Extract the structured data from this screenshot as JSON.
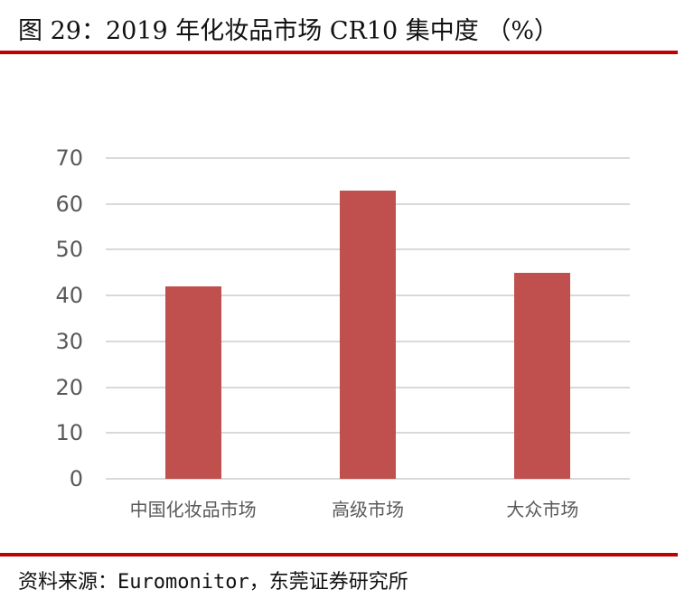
{
  "title": "图 29：2019 年化妆品市场 CR10 集中度 （%）",
  "source": "资料来源：Euromonitor，东莞证券研究所",
  "colors": {
    "bar": "#c0504d",
    "rule": "#c00000",
    "grid": "#d9d9d9",
    "axis_text": "#595959"
  },
  "chart_data": {
    "type": "bar",
    "title": "2019 年化妆品市场 CR10 集中度 （%）",
    "categories": [
      "中国化妆品市场",
      "高级市场",
      "大众市场"
    ],
    "values": [
      42,
      63,
      45
    ],
    "xlabel": "",
    "ylabel": "",
    "ylim": [
      0,
      70
    ],
    "yticks": [
      0,
      10,
      20,
      30,
      40,
      50,
      60,
      70
    ],
    "grid": true,
    "legend": null
  }
}
